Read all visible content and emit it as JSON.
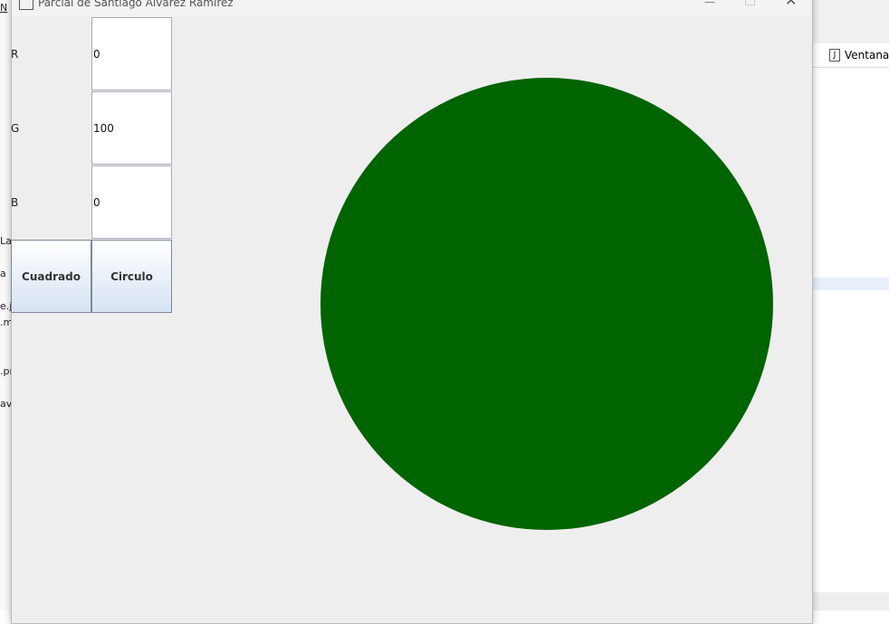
{
  "window": {
    "title": "Parcial de Santiago Alvarez Ramirez",
    "fields": [
      {
        "label": "R",
        "value": 0
      },
      {
        "label": "G",
        "value": 100
      },
      {
        "label": "B",
        "value": 0
      }
    ],
    "buttons": [
      "Cuadrado",
      "Circulo"
    ]
  },
  "background": {
    "left_fragments": [
      "N",
      "Lag",
      "a",
      "e.j",
      ".m",
      ".pr",
      "ava"
    ],
    "tab": "VentanaM"
  }
}
